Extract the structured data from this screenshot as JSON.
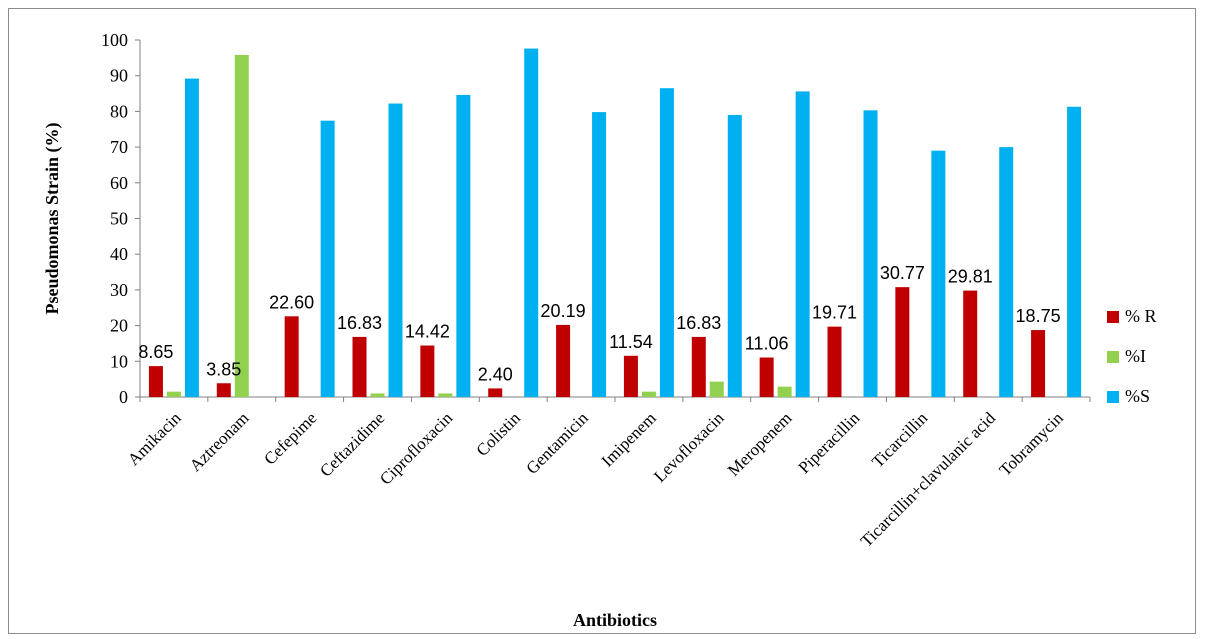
{
  "chart_data": {
    "type": "bar",
    "title": "",
    "xlabel": "Antibiotics",
    "ylabel": "Pseudomonas  Strain (%)",
    "ylim": [
      0,
      100
    ],
    "yticks": [
      0,
      10,
      20,
      30,
      40,
      50,
      60,
      70,
      80,
      90,
      100
    ],
    "grid": false,
    "legend_position": "right",
    "categories": [
      "Amikacin",
      "Aztreonam",
      "Cefepime",
      "Ceftazidime",
      "Ciprofloxacin",
      "Colistin",
      "Gentamicin",
      "Imipenem",
      "Levofloxacin",
      "Meropenem",
      "Piperacillin",
      "Ticarcillin",
      "Ticarcillin+clavulanic  acid",
      "Tobramycin"
    ],
    "series": [
      {
        "name": "% R",
        "color": "#c00000",
        "values": [
          8.65,
          3.85,
          22.6,
          16.83,
          14.42,
          2.4,
          20.19,
          11.54,
          16.83,
          11.06,
          19.71,
          30.77,
          29.81,
          18.75
        ],
        "labels": [
          "8.65",
          "3.85",
          "22.60",
          "16.83",
          "14.42",
          "2.40",
          "20.19",
          "11.54",
          "16.83",
          "11.06",
          "19.71",
          "30.77",
          "29.81",
          "18.75"
        ]
      },
      {
        "name": "%I",
        "color": "#92d050",
        "values": [
          1.5,
          95.8,
          0,
          1.0,
          1.0,
          0,
          0,
          1.5,
          4.3,
          2.9,
          0,
          0,
          0,
          0
        ]
      },
      {
        "name": "%S",
        "color": "#00b0f0",
        "values": [
          89.2,
          0,
          77.4,
          82.2,
          84.6,
          97.6,
          79.8,
          86.5,
          79.0,
          85.6,
          80.3,
          69.0,
          70.0,
          81.3
        ]
      }
    ]
  }
}
